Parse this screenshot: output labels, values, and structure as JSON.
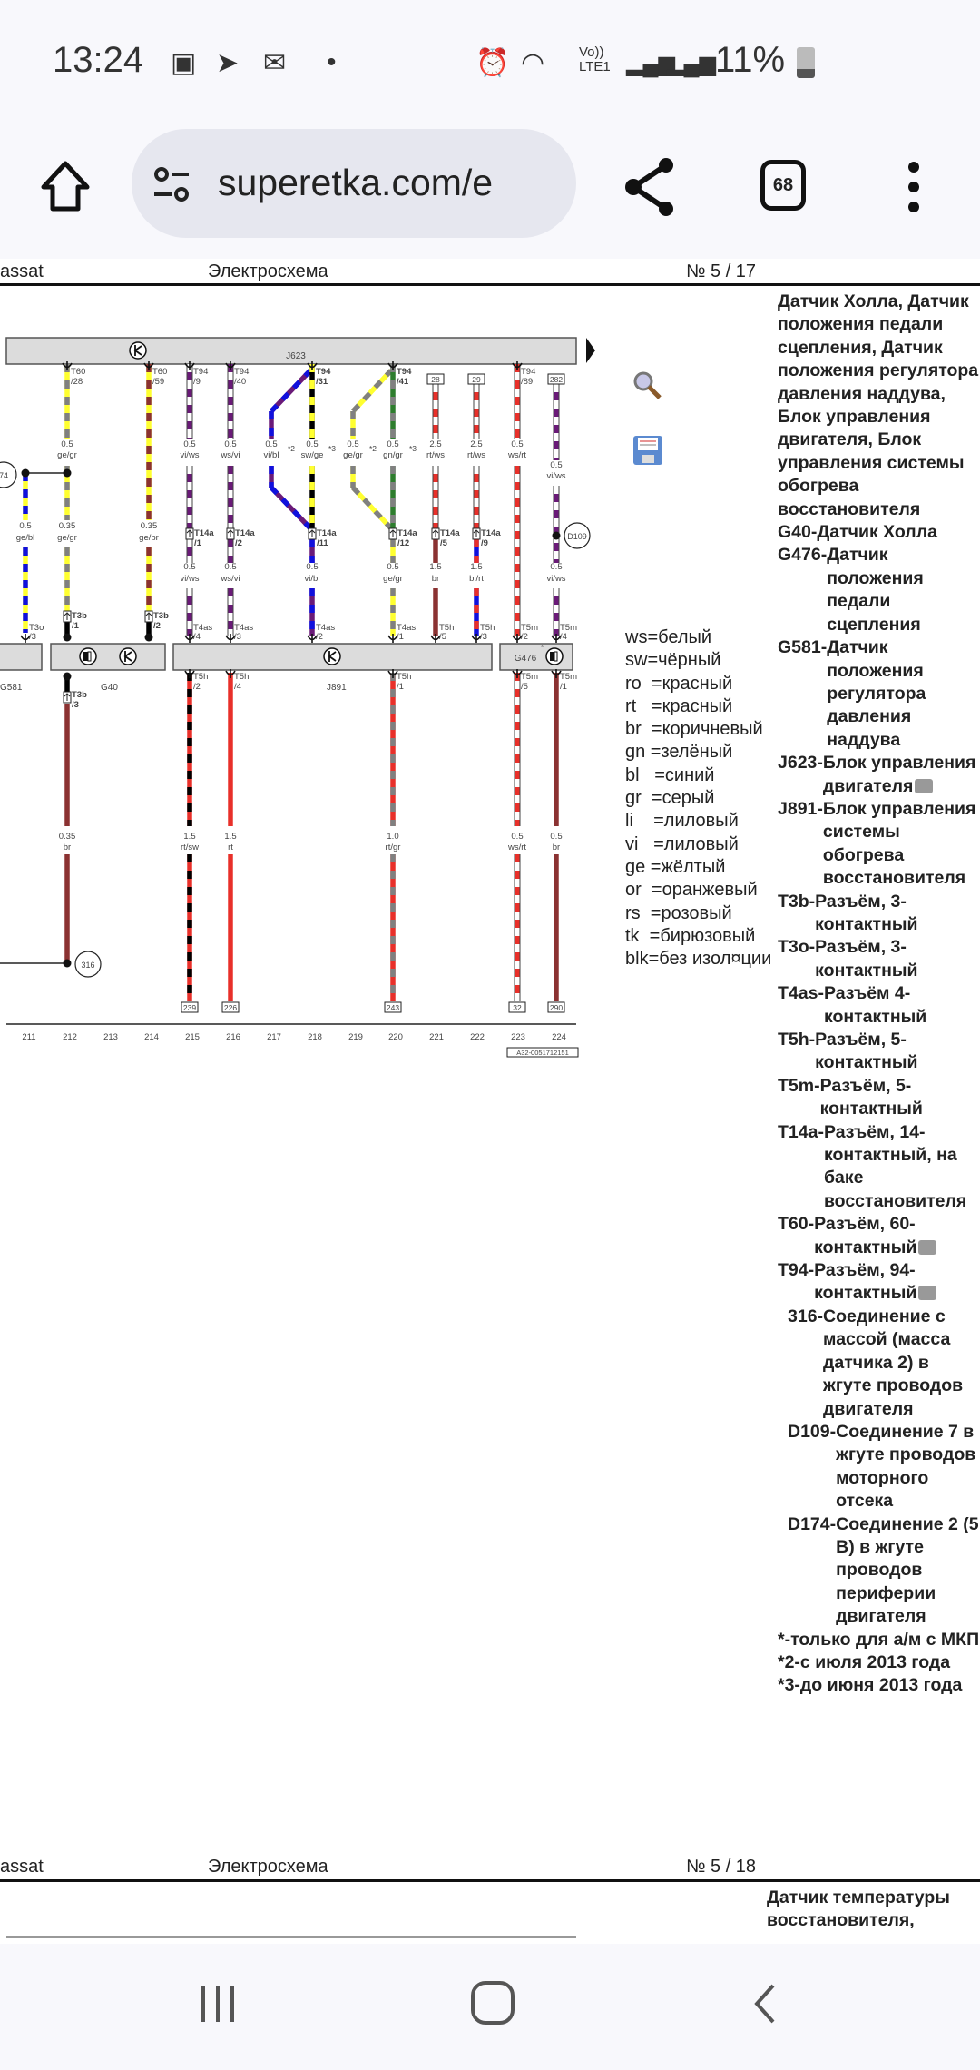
{
  "status": {
    "time": "13:24",
    "volte": "Vo))",
    "lte": "LTE1",
    "battery": "11%"
  },
  "browser": {
    "url": "superetka.com/e",
    "tab_count": "68"
  },
  "page1": {
    "left": "assat",
    "title": "Электросхема",
    "number": "№  5 / 17"
  },
  "page2": {
    "left": "assat",
    "title": "Электросхема",
    "number": "№  5 / 18",
    "desc": [
      "Датчик температуры",
      "восстановителя,"
    ]
  },
  "wire_colors": {
    "ge": "#ffff30",
    "gr": "#808080",
    "vi": "#6a1a78",
    "ws": "#ffffff",
    "bl": "#1010dd",
    "sw": "#000000",
    "rt": "#e8302a",
    "br": "#8b3232",
    "gn": "#2e7d2e"
  },
  "diagram": {
    "components": {
      "j623": "J623",
      "g581": "G581",
      "g40": "G40",
      "j891": "J891",
      "g476": "G476",
      "g476_note": "*"
    },
    "splices": {
      "s316": "316",
      "d109": "D109",
      "d174": "74"
    },
    "wires": [
      {
        "l2": [
          "0.5",
          "ge/bl"
        ],
        "bot": [
          "T3o",
          "/3"
        ]
      },
      {
        "top": [
          "T60",
          "/28"
        ],
        "l1": [
          "0.5",
          "ge/gr"
        ],
        "l2": [
          "0.35",
          "ge/gr"
        ],
        "bot": [
          "T3b",
          "/1"
        ],
        "bl": [
          "T3b",
          "/3"
        ],
        "l3": [
          "0.35",
          "br"
        ]
      },
      {
        "top": [
          "T60",
          "/59"
        ],
        "l2": [
          "0.35",
          "ge/br"
        ],
        "bot": [
          "T3b",
          "/2"
        ]
      },
      {
        "top": [
          "T94",
          "/9"
        ],
        "l1": [
          "0.5",
          "vi/ws"
        ],
        "mid": [
          "T14a",
          "/1"
        ],
        "l2": [
          "0.5",
          "vi/ws"
        ],
        "bot": [
          "T4as",
          "/4"
        ],
        "bl": [
          "T5h",
          "/2"
        ],
        "l3": [
          "1.5",
          "rt/sw"
        ],
        "ref": "239"
      },
      {
        "top": [
          "T94",
          "/40"
        ],
        "l1": [
          "0.5",
          "ws/vi"
        ],
        "mid": [
          "T14a",
          "/2"
        ],
        "l2": [
          "0.5",
          "ws/vi"
        ],
        "bot": [
          "T4as",
          "/3"
        ],
        "bl": [
          "T5h",
          "/4"
        ],
        "l3": [
          "1.5",
          "rt"
        ],
        "ref": "226"
      },
      {
        "l1": [
          "0.5",
          "vi/bl"
        ],
        "note": "*2"
      },
      {
        "top": [
          "T94",
          "/31"
        ],
        "l1": [
          "0.5",
          "sw/ge"
        ],
        "note": "*3",
        "mid": [
          "T14a",
          "/11"
        ],
        "l2": [
          "0.5",
          "vi/bl"
        ],
        "bot": [
          "T4as",
          "/2"
        ]
      },
      {
        "l1": [
          "0.5",
          "ge/gr"
        ],
        "note": "*2"
      },
      {
        "top": [
          "T94",
          "/41"
        ],
        "l1": [
          "0.5",
          "gn/gr"
        ],
        "note": "*3",
        "mid": [
          "T14a",
          "/12"
        ],
        "l2": [
          "0.5",
          "ge/gr"
        ],
        "bot": [
          "T4as",
          "/1"
        ],
        "bl": [
          "T5h",
          "/1"
        ],
        "l3": [
          "1.0",
          "rt/gr"
        ],
        "ref": "243"
      },
      {
        "topref": "28",
        "l1": [
          "2.5",
          "rt/ws"
        ],
        "mid": [
          "T14a",
          "/5"
        ],
        "l2": [
          "1.5",
          "br"
        ],
        "bot": [
          "T5h",
          "/5"
        ]
      },
      {
        "topref": "29",
        "l1": [
          "2.5",
          "rt/ws"
        ],
        "mid": [
          "T14a",
          "/9"
        ],
        "l2": [
          "1.5",
          "bl/rt"
        ],
        "bot": [
          "T5h",
          "/3"
        ]
      },
      {
        "top": [
          "T94",
          "/89"
        ],
        "l1": [
          "0.5",
          "ws/rt"
        ],
        "bot": [
          "T5m",
          "/2"
        ],
        "bl": [
          "T5m",
          "/5"
        ],
        "l3": [
          "0.5",
          "ws/rt"
        ],
        "ref": "32"
      },
      {
        "topref": "282",
        "l1": [
          "0.5",
          "vi/ws"
        ],
        "l2": [
          "0.5",
          "vi/ws"
        ],
        "bot": [
          "T5m",
          "/4"
        ],
        "bl": [
          "T5m",
          "/1"
        ],
        "l3": [
          "0.5",
          "br"
        ],
        "ref": "290"
      }
    ],
    "columns": [
      "211",
      "212",
      "213",
      "214",
      "215",
      "216",
      "217",
      "218",
      "219",
      "220",
      "221",
      "222",
      "223",
      "224"
    ],
    "drawing_id": "A32-0051712151"
  },
  "legend": [
    "ws=белый",
    "sw=чёрный",
    "ro  =красный",
    "rt   =красный",
    "br  =коричневый",
    "gn =зелёный",
    "bl   =синий",
    "gr  =серый",
    "li    =лиловый",
    "vi   =лиловый",
    "ge =жёлтый",
    "or  =оранжевый",
    "rs  =розовый",
    "tk  =бирюзовый",
    "blk=без изол¤ции"
  ],
  "description": {
    "intro": "Датчик Холла, Датчик положения педали сцепления, Датчик положения регулятора давления наддува, Блок управления двигателя, Блок управления системы обогрева восстановителя",
    "entries": [
      {
        "code": "G40-",
        "text": "Датчик Холла"
      },
      {
        "code": "G476-",
        "text": "Датчик положения педали сцепления"
      },
      {
        "code": "G581-",
        "text": "Датчик положения регулятора давления наддува"
      },
      {
        "code": "J623-",
        "text": "Блок управления двигателя",
        "icon": "camera-icon"
      },
      {
        "code": "J891-",
        "text": "Блок управления системы обогрева восстановителя"
      },
      {
        "code": "T3b-",
        "text": "Разъём, 3-контактный"
      },
      {
        "code": "T3o-",
        "text": "Разъём, 3-контактный"
      },
      {
        "code": "T4as-",
        "text": "Разъём 4-контактный"
      },
      {
        "code": "T5h-",
        "text": "Разъём, 5-контактный"
      },
      {
        "code": "T5m-",
        "text": "Разъём, 5-контактный"
      },
      {
        "code": "T14a-",
        "text": "Разъём, 14-контактный, на баке восстановителя"
      },
      {
        "code": "T60-",
        "text": "Разъём, 60-контактный",
        "icon": "connector-photo-icon"
      },
      {
        "code": "T94-",
        "text": "Разъём, 94-контактный",
        "icon": "connector-photo-icon"
      },
      {
        "code": "316-",
        "text": "Соединение с массой (масса датчика 2) в жгуте проводов двигателя"
      },
      {
        "code": "D109-",
        "text": "Соединение 7 в жгуте проводов моторного отсека"
      },
      {
        "code": "D174-",
        "text": "Соединение 2 (5 В) в жгуте проводов периферии двигателя"
      }
    ],
    "notes": [
      "*-только для а/м с МКП",
      "*2-с июля 2013 года",
      "*3-до июня 2013 года"
    ]
  }
}
